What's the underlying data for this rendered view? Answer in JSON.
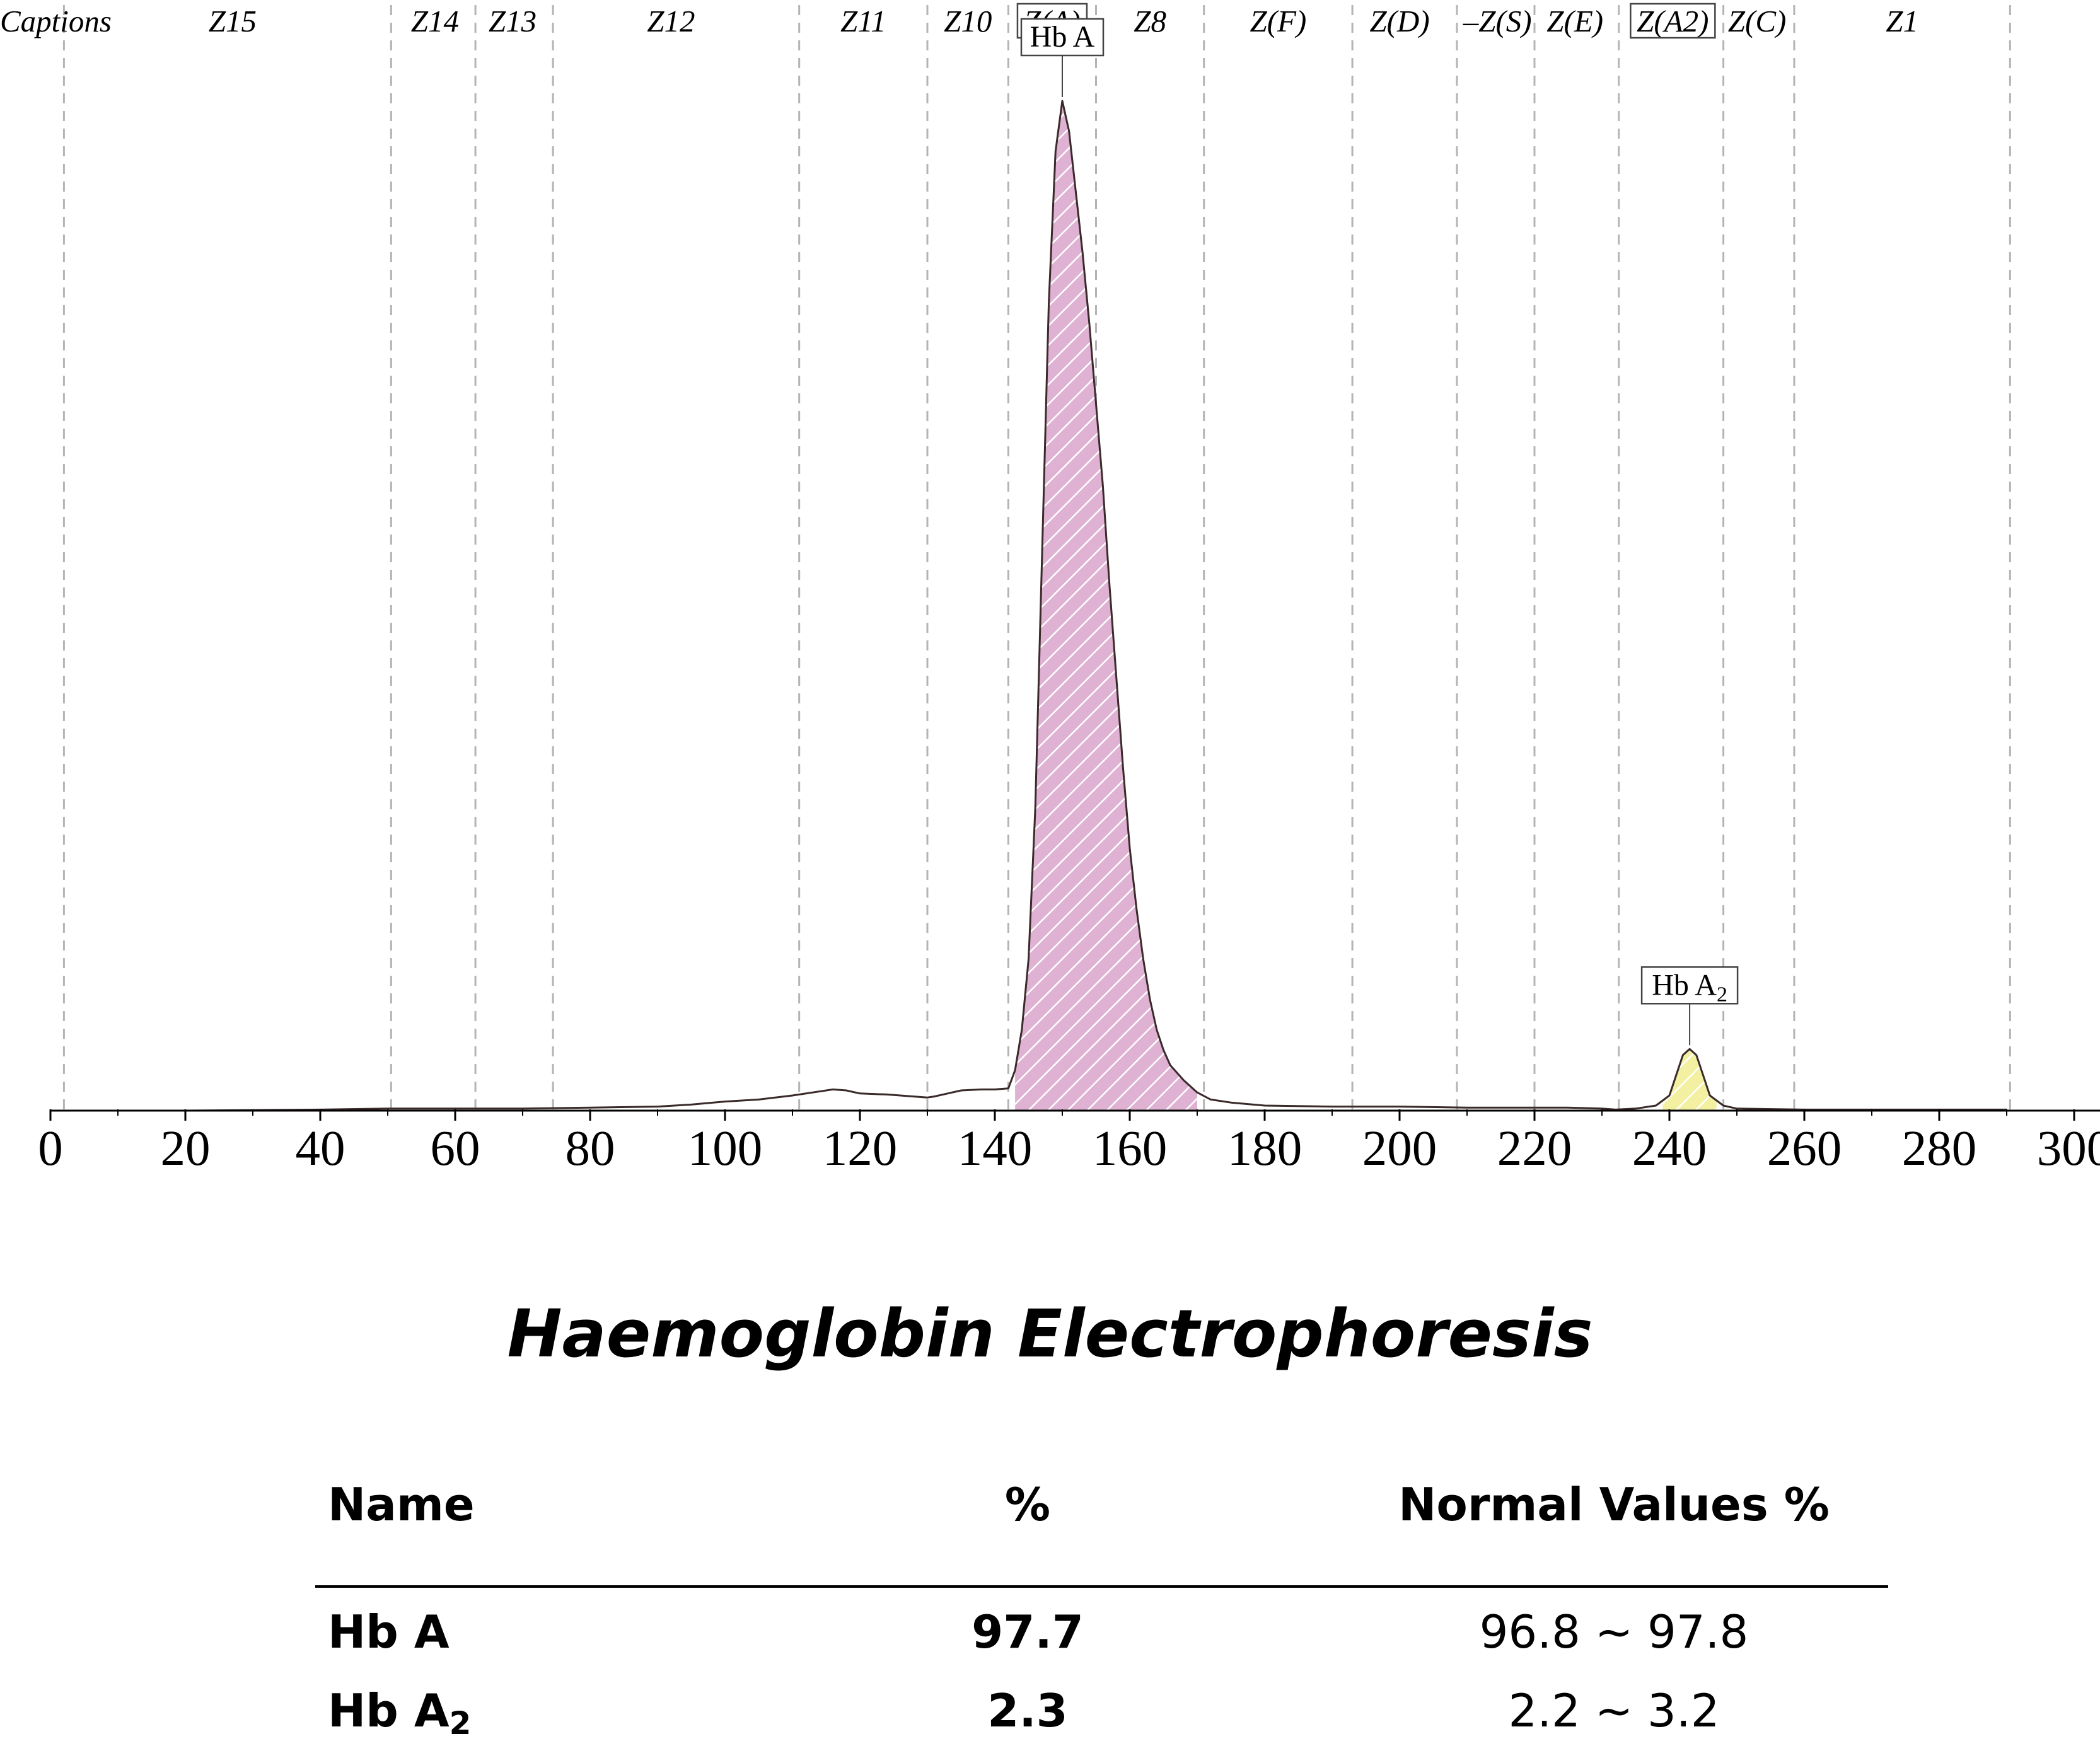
{
  "chart_data": {
    "type": "line",
    "title": "Haemoglobin Electrophoresis",
    "xlabel": "",
    "ylabel": "",
    "xlim": [
      0,
      300
    ],
    "x_ticks": [
      0,
      20,
      40,
      60,
      80,
      100,
      120,
      140,
      160,
      180,
      200,
      220,
      240,
      260,
      280,
      300
    ],
    "grid": "vertical dashed zone boundaries",
    "zone_boundaries": [
      2,
      50.5,
      63,
      74.5,
      111,
      130,
      142,
      155,
      171,
      193,
      208.5,
      220,
      232.5,
      248,
      258.5,
      290.5
    ],
    "zones": [
      {
        "label": "Captions",
        "x": -1
      },
      {
        "label": "Z15",
        "x": 27
      },
      {
        "label": "Z14",
        "x": 57
      },
      {
        "label": "Z13",
        "x": 68.5
      },
      {
        "label": "Z12",
        "x": 92
      },
      {
        "label": "Z11",
        "x": 120.5
      },
      {
        "label": "Z10",
        "x": 136
      },
      {
        "label": "Z(A)",
        "x": 148.5,
        "boxed": true
      },
      {
        "label": "Z8",
        "x": 163
      },
      {
        "label": "Z(F)",
        "x": 182
      },
      {
        "label": "Z(D)",
        "x": 200
      },
      {
        "label": "–Z(S)",
        "x": 214.5
      },
      {
        "label": "Z(E)",
        "x": 226
      },
      {
        "label": "Z(A2)",
        "x": 240.5,
        "boxed": true
      },
      {
        "label": "Z(C)",
        "x": 253
      },
      {
        "label": "Z1",
        "x": 274.5
      }
    ],
    "series": [
      {
        "x": [
          0,
          20,
          40,
          50,
          60,
          70,
          80,
          90,
          95,
          100,
          105,
          110,
          113,
          116,
          118,
          120,
          124,
          126,
          128,
          130,
          131,
          133,
          135,
          138,
          140,
          142,
          143,
          144,
          145,
          146,
          147,
          148,
          149,
          150,
          151,
          152,
          153,
          154,
          155,
          156,
          157,
          158,
          159,
          160,
          161,
          162,
          163,
          164,
          165,
          166,
          168,
          170,
          172,
          175,
          180,
          190,
          200,
          210,
          220,
          225,
          230,
          232,
          235,
          238,
          240,
          241,
          242,
          243,
          244,
          245,
          246,
          248,
          250,
          260,
          280,
          290
        ],
        "values": [
          0,
          0,
          0.1,
          0.2,
          0.2,
          0.2,
          0.3,
          0.4,
          0.6,
          0.9,
          1.1,
          1.5,
          1.8,
          2.1,
          2.0,
          1.7,
          1.6,
          1.5,
          1.4,
          1.3,
          1.4,
          1.7,
          2.0,
          2.1,
          2.1,
          2.2,
          4,
          8,
          15,
          30,
          55,
          80,
          95,
          100,
          97,
          91,
          85,
          78,
          70,
          62,
          52,
          43,
          34,
          26,
          20,
          15,
          11,
          8,
          6,
          4.5,
          3,
          1.8,
          1.1,
          0.8,
          0.5,
          0.4,
          0.4,
          0.3,
          0.3,
          0.3,
          0.2,
          0.1,
          0.2,
          0.5,
          1.5,
          3.5,
          5.5,
          6.1,
          5.5,
          3.5,
          1.5,
          0.5,
          0.2,
          0.1,
          0.1,
          0.1
        ]
      }
    ],
    "peaks": [
      {
        "label": "Hb A",
        "x_from": 143,
        "x_to": 170,
        "apex_x": 150,
        "fill": "#dfb1d3",
        "hatch": "#ffffff"
      },
      {
        "label": "Hb A",
        "sub": "2",
        "x_from": 239,
        "x_to": 247,
        "apex_x": 243,
        "fill": "#f4f0a2",
        "hatch": "#ffffff"
      }
    ]
  },
  "table": {
    "headers": {
      "name": "Name",
      "pct": "%",
      "normal": "Normal Values %"
    },
    "rows": [
      {
        "name": "Hb A",
        "sub": "",
        "pct": "97.7",
        "normal": "96.8 ~ 97.8"
      },
      {
        "name": "Hb A",
        "sub": "2",
        "pct": "2.3",
        "normal": "2.2 ~ 3.2"
      }
    ]
  }
}
